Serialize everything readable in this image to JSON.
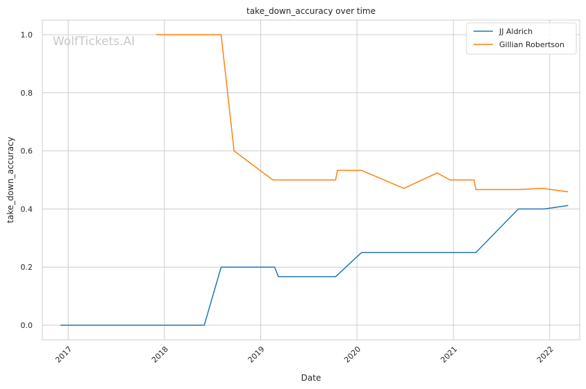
{
  "chart_data": {
    "type": "line",
    "title": "take_down_accuracy over time",
    "xlabel": "Date",
    "ylabel": "take_down_accuracy",
    "watermark": "WolfTickets.AI",
    "xlim": [
      "2016-09-25",
      "2022-04-25"
    ],
    "ylim": [
      -0.05,
      1.05
    ],
    "x_ticks": [
      "2017",
      "2018",
      "2019",
      "2020",
      "2021",
      "2022"
    ],
    "y_ticks": [
      "0.0",
      "0.2",
      "0.4",
      "0.6",
      "0.8",
      "1.0"
    ],
    "grid": true,
    "legend": "top-right",
    "series": [
      {
        "name": "JJ Aldrich",
        "color": "#1f77b4",
        "points": [
          [
            "2016-12-03",
            0.0
          ],
          [
            "2018-06-01",
            0.0
          ],
          [
            "2018-08-04",
            0.2
          ],
          [
            "2019-02-23",
            0.2
          ],
          [
            "2019-03-09",
            0.167
          ],
          [
            "2019-10-12",
            0.167
          ],
          [
            "2020-01-18",
            0.25
          ],
          [
            "2021-03-27",
            0.25
          ],
          [
            "2021-09-04",
            0.4
          ],
          [
            "2021-12-11",
            0.4
          ],
          [
            "2022-03-12",
            0.412
          ]
        ]
      },
      {
        "name": "Gillian Robertson",
        "color": "#ff7f0e",
        "points": [
          [
            "2017-12-01",
            1.0
          ],
          [
            "2018-08-04",
            1.0
          ],
          [
            "2018-09-22",
            0.6
          ],
          [
            "2019-02-16",
            0.5
          ],
          [
            "2019-10-12",
            0.5
          ],
          [
            "2019-10-19",
            0.533
          ],
          [
            "2020-01-18",
            0.533
          ],
          [
            "2020-06-27",
            0.471
          ],
          [
            "2020-10-31",
            0.524
          ],
          [
            "2020-12-19",
            0.5
          ],
          [
            "2021-03-20",
            0.5
          ],
          [
            "2021-03-27",
            0.467
          ],
          [
            "2021-09-04",
            0.467
          ],
          [
            "2021-12-04",
            0.471
          ],
          [
            "2022-03-12",
            0.459
          ]
        ]
      }
    ]
  }
}
